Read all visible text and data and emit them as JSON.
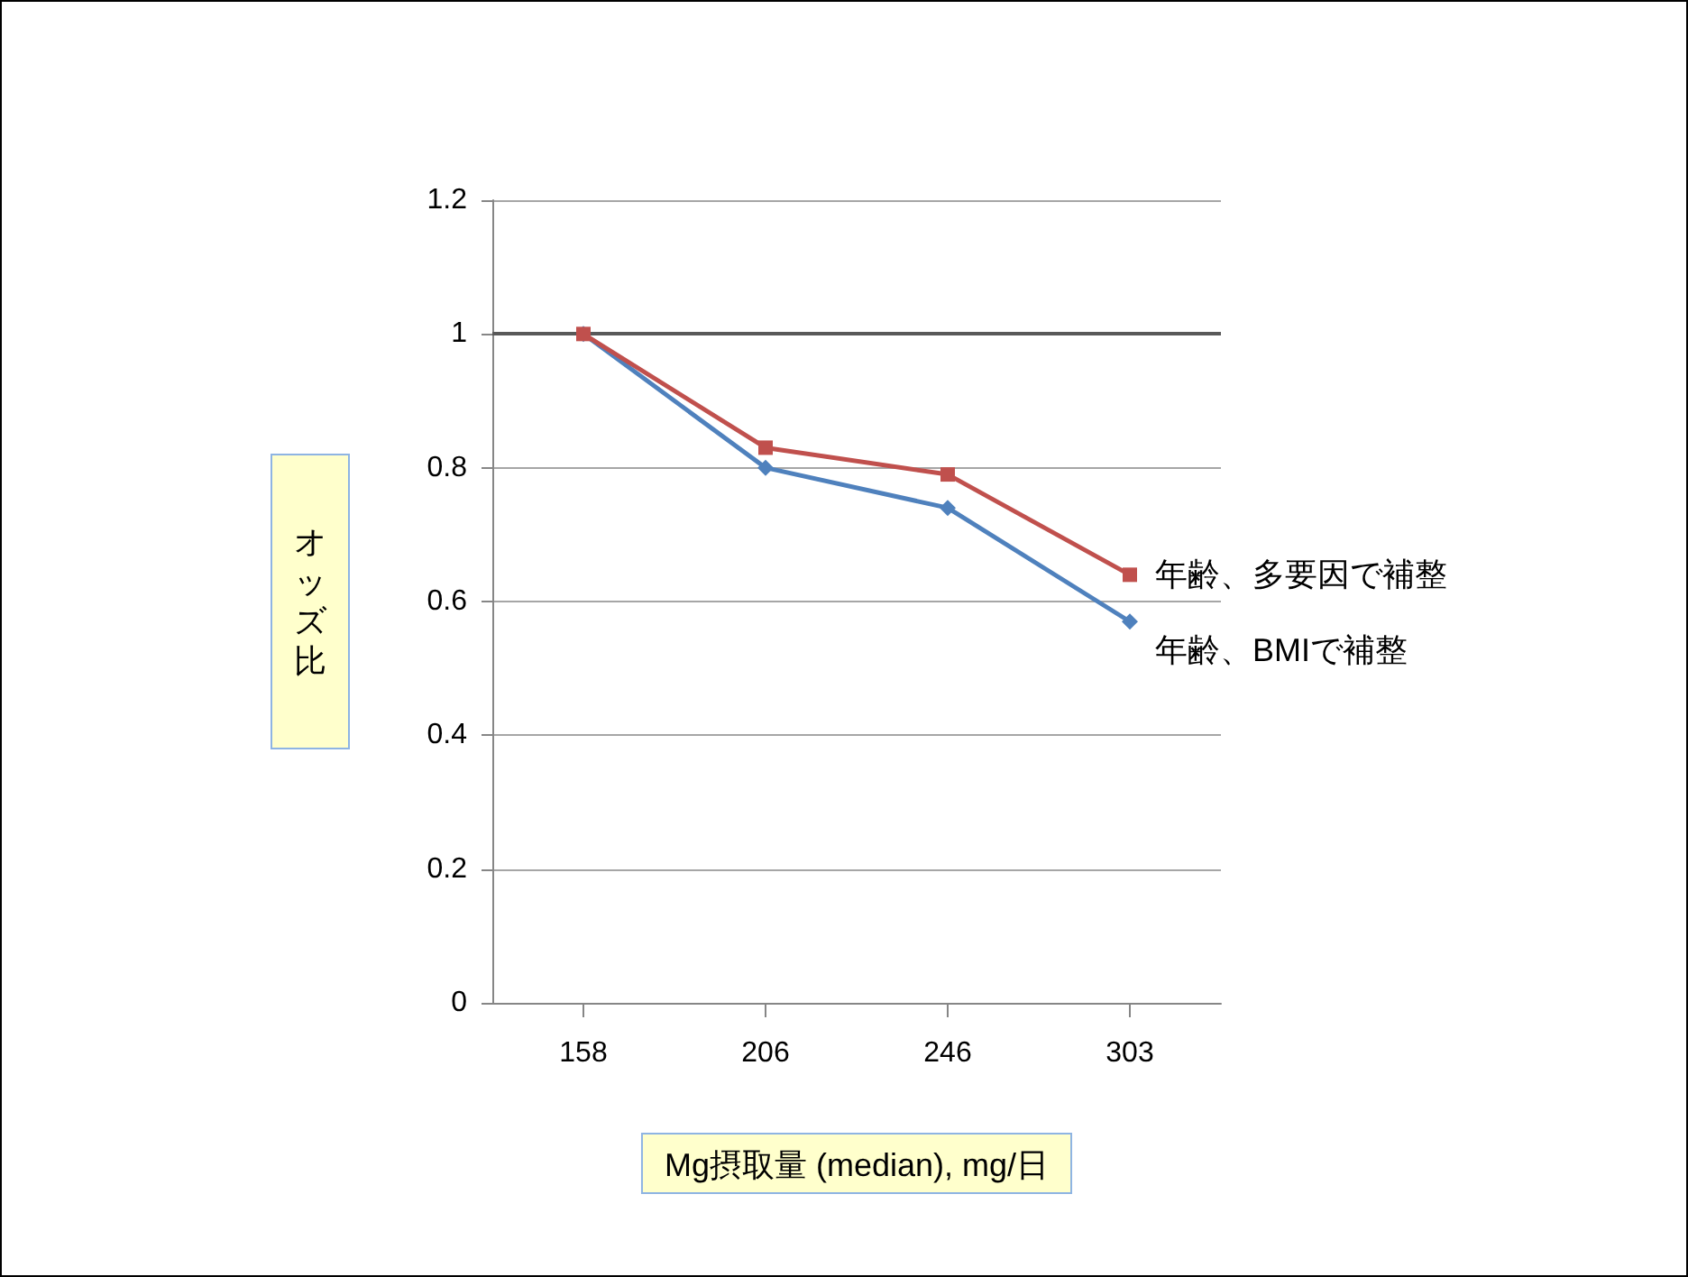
{
  "chart_data": {
    "type": "line",
    "xlabel": "Mg摂取量 (median), mg/日",
    "ylabel": "オッズ比",
    "categories": [
      "158",
      "206",
      "246",
      "303"
    ],
    "series": [
      {
        "name": "年齢、多要因で補整",
        "color": "#c0504d",
        "marker": "square",
        "values": [
          1,
          0.83,
          0.79,
          0.64
        ]
      },
      {
        "name": "年齢、BMIで補整",
        "color": "#4f81bd",
        "marker": "diamond",
        "values": [
          1,
          0.8,
          0.74,
          0.57
        ]
      }
    ],
    "ylim": [
      0,
      1.2
    ],
    "yticks": [
      0,
      0.2,
      0.4,
      0.6,
      0.8,
      1,
      1.2
    ],
    "grid": "y",
    "legend": false,
    "ref_lines": [
      {
        "axis": "y",
        "value": 1,
        "color": "#595959"
      }
    ]
  }
}
